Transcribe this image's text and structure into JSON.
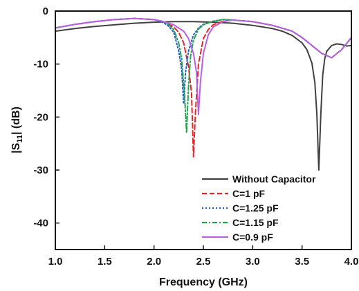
{
  "chart_data": {
    "type": "line",
    "title": "",
    "xlabel": "Frequency (GHz)",
    "ylabel_parts": [
      "|S",
      "11",
      "| (dB)"
    ],
    "xlim": [
      1.0,
      4.0
    ],
    "ylim": [
      -45,
      0
    ],
    "xticks": [
      "1.0",
      "1.5",
      "2.0",
      "2.5",
      "3.0",
      "3.5",
      "4.0"
    ],
    "yticks": [
      "0",
      "-10",
      "-20",
      "-30",
      "-40"
    ],
    "grid": false,
    "legend_position": "bottom-right",
    "series": [
      {
        "name": "Without Capacitor",
        "color": "#404040",
        "dash": "solid",
        "x": [
          1.0,
          1.2,
          1.4,
          1.6,
          1.8,
          2.0,
          2.2,
          2.4,
          2.6,
          2.8,
          3.0,
          3.2,
          3.3,
          3.4,
          3.5,
          3.55,
          3.6,
          3.63,
          3.65,
          3.67,
          3.69,
          3.71,
          3.73,
          3.75,
          3.8,
          3.85,
          3.9,
          3.95,
          4.0
        ],
        "y": [
          -3.8,
          -3.3,
          -2.9,
          -2.6,
          -2.3,
          -2.1,
          -2.0,
          -2.0,
          -2.1,
          -2.3,
          -2.7,
          -3.3,
          -3.8,
          -4.6,
          -6.0,
          -7.3,
          -9.8,
          -13.5,
          -19.5,
          -30.0,
          -19.5,
          -12.0,
          -9.0,
          -7.6,
          -6.5,
          -6.2,
          -6.3,
          -6.6,
          -6.5
        ]
      },
      {
        "name": "C=1 pF",
        "color": "#e8262a",
        "dash": "dashed",
        "x": [
          1.0,
          1.2,
          1.4,
          1.6,
          1.8,
          2.0,
          2.1,
          2.2,
          2.25,
          2.3,
          2.35,
          2.38,
          2.4,
          2.42,
          2.45,
          2.5,
          2.55,
          2.6,
          2.7,
          2.8,
          3.0,
          3.2,
          3.4,
          3.5,
          3.6,
          3.7,
          3.8,
          3.9,
          4.0
        ],
        "y": [
          -3.2,
          -2.5,
          -2.0,
          -1.6,
          -1.4,
          -1.6,
          -2.0,
          -3.0,
          -4.0,
          -6.0,
          -10.5,
          -15.5,
          -27.5,
          -19.0,
          -10.0,
          -5.2,
          -3.5,
          -2.6,
          -1.9,
          -1.7,
          -2.0,
          -2.7,
          -3.8,
          -5.0,
          -6.5,
          -8.0,
          -8.8,
          -7.3,
          -5.0
        ]
      },
      {
        "name": "C=1.25 pF",
        "color": "#2060c8",
        "dash": "dotted",
        "x": [
          1.0,
          1.2,
          1.4,
          1.6,
          1.8,
          2.0,
          2.1,
          2.15,
          2.2,
          2.25,
          2.28,
          2.3,
          2.32,
          2.35,
          2.4,
          2.45,
          2.5,
          2.6,
          2.7,
          2.8,
          3.0,
          3.2,
          3.4,
          3.5,
          3.6,
          3.7,
          3.8,
          3.9,
          4.0
        ],
        "y": [
          -3.2,
          -2.5,
          -2.0,
          -1.6,
          -1.4,
          -1.6,
          -2.2,
          -2.9,
          -4.0,
          -7.5,
          -11.0,
          -17.5,
          -11.5,
          -7.5,
          -4.5,
          -3.2,
          -2.5,
          -1.9,
          -1.6,
          -1.7,
          -2.0,
          -2.7,
          -3.8,
          -5.0,
          -6.5,
          -8.0,
          -8.8,
          -7.3,
          -5.0
        ]
      },
      {
        "name": "C=1.15 pF",
        "color": "#28a050",
        "dash": "dashdot",
        "x": [
          1.0,
          1.2,
          1.4,
          1.6,
          1.8,
          2.0,
          2.1,
          2.15,
          2.2,
          2.25,
          2.28,
          2.31,
          2.33,
          2.35,
          2.37,
          2.4,
          2.45,
          2.5,
          2.6,
          2.7,
          2.8,
          3.0,
          3.2,
          3.4,
          3.5,
          3.6,
          3.7,
          3.8,
          3.9,
          4.0
        ],
        "y": [
          -3.2,
          -2.5,
          -2.0,
          -1.6,
          -1.4,
          -1.6,
          -2.0,
          -2.6,
          -3.5,
          -6.0,
          -9.0,
          -16.0,
          -23.0,
          -14.0,
          -8.5,
          -5.5,
          -3.4,
          -2.6,
          -1.9,
          -1.6,
          -1.7,
          -2.0,
          -2.7,
          -3.8,
          -5.0,
          -6.5,
          -8.0,
          -8.8,
          -7.3,
          -5.0
        ]
      },
      {
        "name": "C=0.9 pF",
        "color": "#b860e0",
        "dash": "solid",
        "x": [
          1.0,
          1.2,
          1.4,
          1.6,
          1.8,
          2.0,
          2.1,
          2.2,
          2.3,
          2.35,
          2.4,
          2.43,
          2.45,
          2.47,
          2.5,
          2.55,
          2.6,
          2.7,
          2.8,
          3.0,
          3.2,
          3.4,
          3.5,
          3.6,
          3.7,
          3.8,
          3.9,
          4.0
        ],
        "y": [
          -3.2,
          -2.5,
          -2.0,
          -1.6,
          -1.4,
          -1.6,
          -2.0,
          -2.6,
          -3.8,
          -5.2,
          -8.0,
          -11.5,
          -19.5,
          -13.5,
          -8.0,
          -4.5,
          -3.0,
          -2.0,
          -1.7,
          -2.0,
          -2.7,
          -3.8,
          -5.0,
          -6.5,
          -8.0,
          -8.8,
          -7.3,
          -5.0
        ]
      }
    ]
  }
}
